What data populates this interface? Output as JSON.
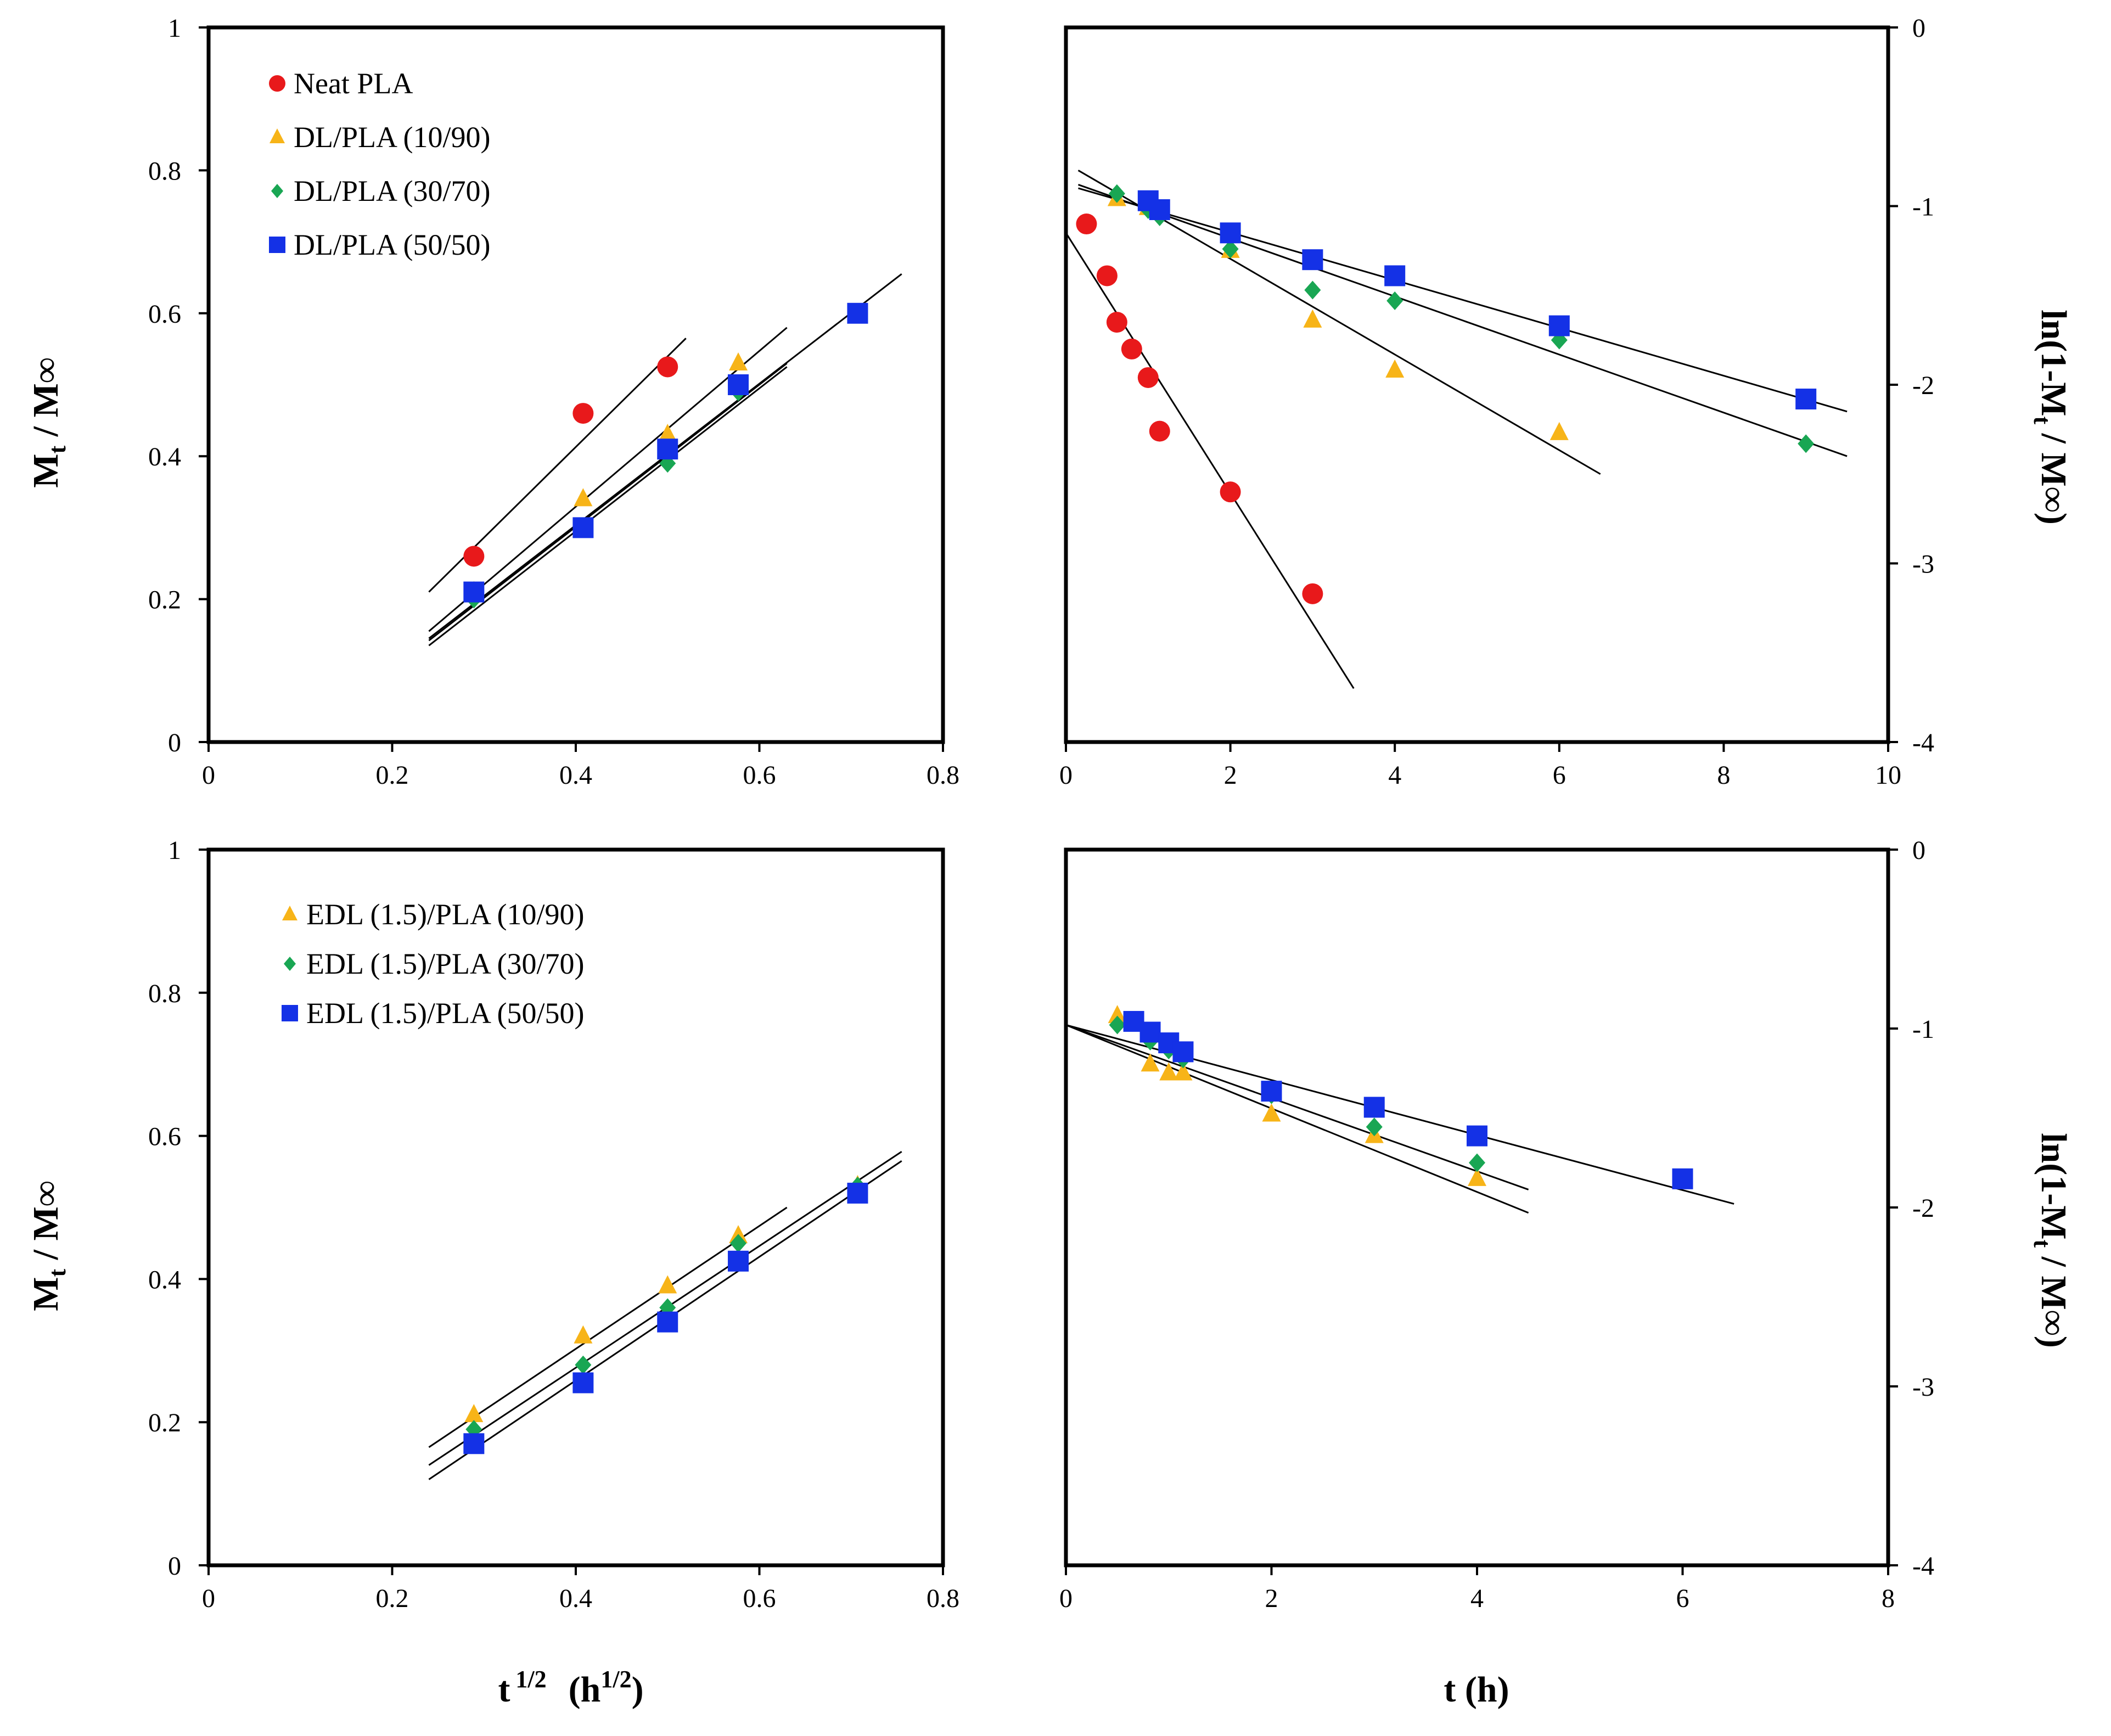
{
  "colors": {
    "red": "#e8191b",
    "orange": "#f7b418",
    "green": "#19a653",
    "blue": "#1431e6",
    "line": "#000000"
  },
  "axis_labels": {
    "left_y_main": "M",
    "left_y_sub_t": "t",
    "left_y_slash": " / M",
    "left_y_inf": "∞",
    "right_y_pre": "ln(1-M",
    "right_y_sub_t": "t",
    "right_y_mid": " / M",
    "right_y_inf": "∞",
    "right_y_close": ")",
    "bottom_left_pre": "t",
    "bottom_left_sup": "1/2",
    "bottom_left_open": "(h",
    "bottom_left_sup2": "1/2",
    "bottom_left_close": ")",
    "bottom_right": "t (h)"
  },
  "chart_data": [
    {
      "id": "top-left",
      "type": "scatter",
      "xlabel": "t 1/2 (h1/2)",
      "ylabel": "Mt / M∞",
      "xlim": [
        0,
        0.8
      ],
      "ylim": [
        0,
        1
      ],
      "x_ticks": [
        "0",
        "0.2",
        "0.4",
        "0.6",
        "0.8"
      ],
      "y_ticks": [
        "0",
        "0.2",
        "0.4",
        "0.6",
        "0.8",
        "1"
      ],
      "legend": "top-left",
      "series": [
        {
          "name": "Neat PLA",
          "marker": "circle",
          "color": "red",
          "x": [
            0.289,
            0.408,
            0.5
          ],
          "y": [
            0.26,
            0.46,
            0.525
          ],
          "fit": {
            "x": [
              0.24,
              0.52
            ],
            "y": [
              0.21,
              0.565
            ]
          }
        },
        {
          "name": "DL/PLA (10/90)",
          "marker": "triangle",
          "color": "orange",
          "x": [
            0.289,
            0.408,
            0.5,
            0.577
          ],
          "y": [
            0.21,
            0.34,
            0.43,
            0.53
          ],
          "fit": {
            "x": [
              0.24,
              0.63
            ],
            "y": [
              0.155,
              0.58
            ]
          }
        },
        {
          "name": "DL/PLA (30/70)",
          "marker": "diamond",
          "color": "green",
          "x": [
            0.289,
            0.408,
            0.5,
            0.577
          ],
          "y": [
            0.2,
            0.3,
            0.39,
            0.49
          ],
          "fit": {
            "x": [
              0.24,
              0.63
            ],
            "y": [
              0.135,
              0.525
            ]
          }
        },
        {
          "name": "DL/PLA (50/50)",
          "marker": "square",
          "color": "blue",
          "x": [
            0.289,
            0.408,
            0.5,
            0.577,
            0.707
          ],
          "y": [
            0.21,
            0.3,
            0.41,
            0.5,
            0.6
          ],
          "fit": {
            "x": [
              0.24,
              0.755
            ],
            "y": [
              0.145,
              0.655
            ]
          }
        }
      ],
      "extra_fits": [
        {
          "x": [
            0.24,
            0.63
          ],
          "y": [
            0.142,
            0.53
          ]
        }
      ]
    },
    {
      "id": "top-right",
      "type": "scatter",
      "xlabel": "t (h)",
      "ylabel": "ln(1-Mt / M∞)",
      "xlim": [
        0,
        10
      ],
      "ylim": [
        -4,
        0
      ],
      "x_ticks": [
        "0",
        "2",
        "4",
        "6",
        "8",
        "10"
      ],
      "y_ticks": [
        "-4",
        "-3",
        "-2",
        "-1",
        "0"
      ],
      "series": [
        {
          "name": "Neat PLA",
          "marker": "circle",
          "color": "red",
          "x": [
            0.25,
            0.5,
            0.62,
            0.8,
            1.0,
            1.14,
            2.0,
            3.0
          ],
          "y": [
            -1.1,
            -1.39,
            -1.65,
            -1.8,
            -1.96,
            -2.26,
            -2.6,
            -3.17
          ],
          "fit": {
            "x": [
              0,
              3.5
            ],
            "y": [
              -1.15,
              -3.7
            ]
          }
        },
        {
          "name": "DL/PLA (10/90)",
          "marker": "triangle",
          "color": "orange",
          "x": [
            0.62,
            1.0,
            2.0,
            3.0,
            4.0,
            6.0
          ],
          "y": [
            -0.96,
            -1.01,
            -1.25,
            -1.64,
            -1.92,
            -2.27
          ],
          "fit": {
            "x": [
              0.15,
              6.5
            ],
            "y": [
              -0.8,
              -2.5
            ]
          }
        },
        {
          "name": "DL/PLA (30/70)",
          "marker": "diamond",
          "color": "green",
          "x": [
            0.62,
            1.0,
            1.14,
            2.0,
            3.0,
            4.0,
            6.0,
            9.0
          ],
          "y": [
            -0.93,
            -1.02,
            -1.06,
            -1.24,
            -1.47,
            -1.53,
            -1.75,
            -2.33
          ],
          "fit": {
            "x": [
              0.15,
              9.5
            ],
            "y": [
              -0.88,
              -2.4
            ]
          }
        },
        {
          "name": "DL/PLA (50/50)",
          "marker": "square",
          "color": "blue",
          "x": [
            1.0,
            1.14,
            2.0,
            3.0,
            4.0,
            6.0,
            9.0
          ],
          "y": [
            -0.97,
            -1.02,
            -1.15,
            -1.3,
            -1.39,
            -1.67,
            -2.08
          ],
          "fit": {
            "x": [
              0.15,
              9.5
            ],
            "y": [
              -0.9,
              -2.15
            ]
          }
        }
      ]
    },
    {
      "id": "bottom-left",
      "type": "scatter",
      "xlabel": "t 1/2 (h1/2)",
      "ylabel": "Mt / M∞",
      "xlim": [
        0,
        0.8
      ],
      "ylim": [
        0,
        1
      ],
      "x_ticks": [
        "0",
        "0.2",
        "0.4",
        "0.6",
        "0.8"
      ],
      "y_ticks": [
        "0",
        "0.2",
        "0.4",
        "0.6",
        "0.8",
        "1"
      ],
      "legend": "top-left",
      "series": [
        {
          "name": "EDL (1.5)/PLA (10/90)",
          "marker": "triangle",
          "color": "orange",
          "x": [
            0.289,
            0.408,
            0.5,
            0.577,
            0.707
          ],
          "y": [
            0.21,
            0.32,
            0.39,
            0.46,
            0.53
          ],
          "fit": {
            "x": [
              0.24,
              0.63
            ],
            "y": [
              0.165,
              0.5
            ]
          }
        },
        {
          "name": "EDL (1.5)/PLA (30/70)",
          "marker": "diamond",
          "color": "green",
          "x": [
            0.289,
            0.408,
            0.5,
            0.577,
            0.707
          ],
          "y": [
            0.19,
            0.28,
            0.36,
            0.45,
            0.53
          ],
          "fit": {
            "x": [
              0.24,
              0.755
            ],
            "y": [
              0.14,
              0.578
            ]
          }
        },
        {
          "name": "EDL (1.5)/PLA (50/50)",
          "marker": "square",
          "color": "blue",
          "x": [
            0.289,
            0.408,
            0.5,
            0.577,
            0.707
          ],
          "y": [
            0.17,
            0.255,
            0.34,
            0.425,
            0.52
          ],
          "fit": {
            "x": [
              0.24,
              0.755
            ],
            "y": [
              0.12,
              0.565
            ]
          }
        }
      ]
    },
    {
      "id": "bottom-right",
      "type": "scatter",
      "xlabel": "t (h)",
      "ylabel": "ln(1-Mt / M∞)",
      "xlim": [
        0,
        8
      ],
      "ylim": [
        -4,
        0
      ],
      "x_ticks": [
        "0",
        "2",
        "4",
        "6",
        "8"
      ],
      "y_ticks": [
        "-4",
        "-3",
        "-2",
        "-1",
        "0"
      ],
      "series": [
        {
          "name": "EDL (1.5)/PLA (10/90)",
          "marker": "triangle",
          "color": "orange",
          "x": [
            0.5,
            0.82,
            1.0,
            1.14,
            2.0,
            3.0,
            4.0
          ],
          "y": [
            -0.93,
            -1.2,
            -1.25,
            -1.25,
            -1.48,
            -1.6,
            -1.84
          ],
          "fit": {
            "x": [
              0,
              4.5
            ],
            "y": [
              -0.98,
              -2.03
            ]
          }
        },
        {
          "name": "EDL (1.5)/PLA (30/70)",
          "marker": "diamond",
          "color": "green",
          "x": [
            0.5,
            0.82,
            1.0,
            1.14,
            2.0,
            3.0,
            4.0
          ],
          "y": [
            -0.98,
            -1.07,
            -1.12,
            -1.17,
            -1.37,
            -1.55,
            -1.75
          ],
          "fit": {
            "x": [
              0,
              4.5
            ],
            "y": [
              -0.98,
              -1.9
            ]
          }
        },
        {
          "name": "EDL (1.5)/PLA (50/50)",
          "marker": "square",
          "color": "blue",
          "x": [
            0.66,
            0.82,
            1.0,
            1.14,
            2.0,
            3.0,
            4.0,
            6.0
          ],
          "y": [
            -0.96,
            -1.02,
            -1.08,
            -1.13,
            -1.35,
            -1.44,
            -1.6,
            -1.84
          ],
          "fit": {
            "x": [
              0,
              6.5
            ],
            "y": [
              -0.98,
              -1.98
            ]
          }
        }
      ]
    }
  ]
}
